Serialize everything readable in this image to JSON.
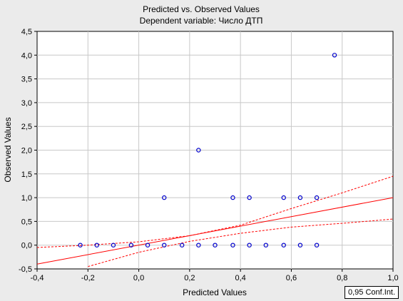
{
  "chart_data": {
    "type": "scatter",
    "title": "Predicted vs. Observed Values",
    "subtitle": "Dependent variable: Число ДТП",
    "xlabel": "Predicted Values",
    "ylabel": "Observed Values",
    "xlim": [
      -0.4,
      1.0
    ],
    "ylim": [
      -0.5,
      4.5
    ],
    "x_ticks": [
      "-0,4",
      "-0,2",
      "0,0",
      "0,2",
      "0,4",
      "0,6",
      "0,8",
      "1,0"
    ],
    "y_ticks": [
      "-0,5",
      "0,0",
      "0,5",
      "1,0",
      "1,5",
      "2,0",
      "2,5",
      "3,0",
      "3,5",
      "4,0",
      "4,5"
    ],
    "grid": true,
    "legend": "0,95 Conf.Int.",
    "colors": {
      "points": "#0000cc",
      "fit": "#ff0000",
      "background": "#ebebeb",
      "plot": "#ffffff"
    },
    "points": [
      {
        "x": -0.23,
        "y": 0
      },
      {
        "x": -0.165,
        "y": 0
      },
      {
        "x": -0.1,
        "y": 0
      },
      {
        "x": -0.03,
        "y": 0
      },
      {
        "x": 0.035,
        "y": 0
      },
      {
        "x": 0.1,
        "y": 0
      },
      {
        "x": 0.17,
        "y": 0
      },
      {
        "x": 0.235,
        "y": 0
      },
      {
        "x": 0.3,
        "y": 0
      },
      {
        "x": 0.37,
        "y": 0
      },
      {
        "x": 0.435,
        "y": 0
      },
      {
        "x": 0.5,
        "y": 0
      },
      {
        "x": 0.57,
        "y": 0
      },
      {
        "x": 0.635,
        "y": 0
      },
      {
        "x": 0.7,
        "y": 0
      },
      {
        "x": 0.1,
        "y": 1
      },
      {
        "x": 0.37,
        "y": 1
      },
      {
        "x": 0.435,
        "y": 1
      },
      {
        "x": 0.57,
        "y": 1
      },
      {
        "x": 0.635,
        "y": 1
      },
      {
        "x": 0.7,
        "y": 1
      },
      {
        "x": 0.235,
        "y": 2
      },
      {
        "x": 0.77,
        "y": 4
      }
    ],
    "fit_line": [
      {
        "x": -0.4,
        "y": -0.4
      },
      {
        "x": 1.0,
        "y": 1.0
      }
    ],
    "conf_upper": [
      {
        "x": -0.4,
        "y": -0.05
      },
      {
        "x": -0.2,
        "y": 0.0
      },
      {
        "x": 0.0,
        "y": 0.07
      },
      {
        "x": 0.2,
        "y": 0.2
      },
      {
        "x": 0.4,
        "y": 0.42
      },
      {
        "x": 0.6,
        "y": 0.77
      },
      {
        "x": 0.8,
        "y": 1.1
      },
      {
        "x": 1.0,
        "y": 1.45
      }
    ],
    "conf_lower": [
      {
        "x": -0.2,
        "y": -0.45
      },
      {
        "x": 0.0,
        "y": -0.15
      },
      {
        "x": 0.2,
        "y": 0.08
      },
      {
        "x": 0.4,
        "y": 0.25
      },
      {
        "x": 0.6,
        "y": 0.38
      },
      {
        "x": 0.8,
        "y": 0.46
      },
      {
        "x": 1.0,
        "y": 0.55
      }
    ]
  }
}
